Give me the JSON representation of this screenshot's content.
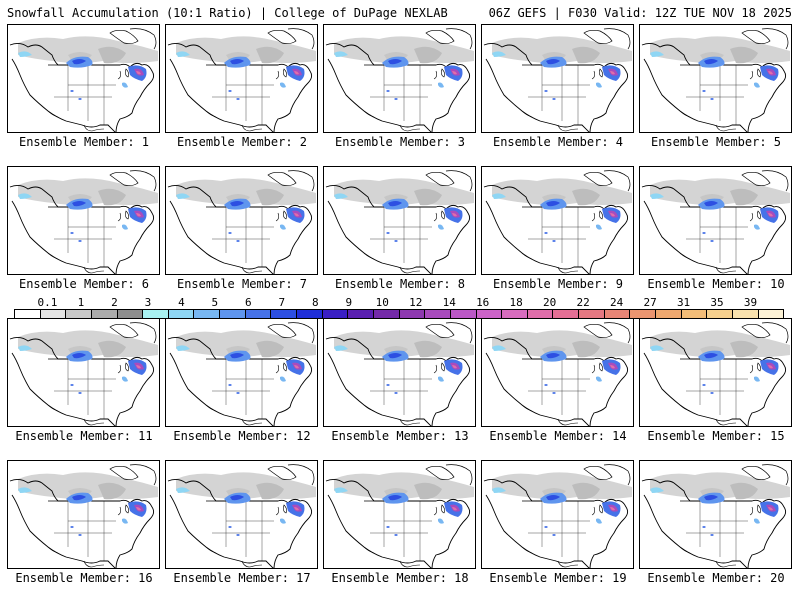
{
  "header": {
    "left": "Snowfall Accumulation (10:1 Ratio) | College of DuPage NEXLAB",
    "right": "06Z GEFS | F030 Valid: 12Z TUE NOV 18 2025"
  },
  "colorbar": {
    "labels": [
      "0.1",
      "1",
      "2",
      "3",
      "4",
      "5",
      "6",
      "7",
      "8",
      "9",
      "10",
      "12",
      "14",
      "16",
      "18",
      "20",
      "22",
      "24",
      "27",
      "31",
      "35",
      "39"
    ],
    "colors": [
      "#ffffff",
      "#e4e4e4",
      "#c8c8c8",
      "#ababab",
      "#8e8e8e",
      "#a9f2f2",
      "#8fd6f4",
      "#78b7f2",
      "#5f95ee",
      "#4672e8",
      "#2d4fe2",
      "#1f2ed8",
      "#3a1fc4",
      "#5a1fb0",
      "#742aa8",
      "#8e39b0",
      "#a84bbd",
      "#bb58c6",
      "#cc63c8",
      "#d86cbe",
      "#e06eaa",
      "#e56f95",
      "#e57882",
      "#e88576",
      "#eb9570",
      "#efa86f",
      "#f3bd78",
      "#f6d08e",
      "#f9e2ae",
      "#fcf2d6"
    ]
  },
  "members": [
    {
      "caption": "Ensemble Member: 1"
    },
    {
      "caption": "Ensemble Member: 2"
    },
    {
      "caption": "Ensemble Member: 3"
    },
    {
      "caption": "Ensemble Member: 4"
    },
    {
      "caption": "Ensemble Member: 5"
    },
    {
      "caption": "Ensemble Member: 6"
    },
    {
      "caption": "Ensemble Member: 7"
    },
    {
      "caption": "Ensemble Member: 8"
    },
    {
      "caption": "Ensemble Member: 9"
    },
    {
      "caption": "Ensemble Member: 10"
    },
    {
      "caption": "Ensemble Member: 11"
    },
    {
      "caption": "Ensemble Member: 12"
    },
    {
      "caption": "Ensemble Member: 13"
    },
    {
      "caption": "Ensemble Member: 14"
    },
    {
      "caption": "Ensemble Member: 15"
    },
    {
      "caption": "Ensemble Member: 16"
    },
    {
      "caption": "Ensemble Member: 17"
    },
    {
      "caption": "Ensemble Member: 18"
    },
    {
      "caption": "Ensemble Member: 19"
    },
    {
      "caption": "Ensemble Member: 20"
    }
  ]
}
